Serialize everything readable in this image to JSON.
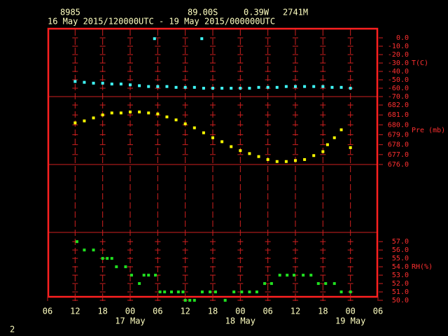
{
  "header": {
    "station": "8985",
    "lat": "89.00S",
    "lon": "0.39W",
    "elev": "2741M",
    "period": "16 May 2015/120000UTC - 19 May 2015/000000UTC",
    "page": "2"
  },
  "chart_data": [
    {
      "type": "scatter",
      "ylabel": "T(C)",
      "color": "#40ffff",
      "ylim": [
        -70,
        11.7
      ],
      "yticks": [
        {
          "value": 0,
          "label": "0.0"
        },
        {
          "value": -10,
          "label": "-10.0"
        },
        {
          "value": -20,
          "label": "-20.0"
        },
        {
          "value": -30,
          "label": "-30.0"
        },
        {
          "value": -40,
          "label": "-40.0"
        },
        {
          "value": -50,
          "label": "-50.0"
        },
        {
          "value": -60,
          "label": "-60.0"
        },
        {
          "value": -70,
          "label": "-70.0"
        }
      ],
      "xlim": [
        0,
        72
      ],
      "x": [
        6,
        8,
        10,
        12,
        14,
        16,
        18,
        20,
        22,
        24,
        26,
        28,
        30,
        32,
        34,
        36,
        38,
        40,
        42,
        44,
        46,
        48,
        50,
        52,
        54,
        56,
        58,
        60,
        62,
        64,
        66,
        23.3,
        33.6
      ],
      "values": [
        -52,
        -53,
        -54,
        -54,
        -55,
        -55,
        -56,
        -57,
        -58,
        -58,
        -58,
        -59,
        -59,
        -59,
        -60,
        -60,
        -60,
        -60,
        -60,
        -60,
        -59,
        -59,
        -59,
        -58,
        -58,
        -58,
        -58,
        -58,
        -59,
        -59,
        -60,
        -1,
        -1
      ]
    },
    {
      "type": "scatter",
      "ylabel": "Pre (mb)",
      "color": "#ffff00",
      "ylim": [
        676,
        682.85
      ],
      "yticks": [
        {
          "value": 682,
          "label": "682.0"
        },
        {
          "value": 681,
          "label": "681.0"
        },
        {
          "value": 680,
          "label": "680.0"
        },
        {
          "value": 679,
          "label": "679.0"
        },
        {
          "value": 678,
          "label": "678.0"
        },
        {
          "value": 677,
          "label": "677.0"
        },
        {
          "value": 676,
          "label": "676.0"
        }
      ],
      "xlim": [
        0,
        72
      ],
      "x": [
        6,
        8,
        10,
        12,
        14,
        16,
        18,
        20,
        22,
        24,
        26,
        28,
        30,
        32,
        34,
        36,
        38,
        40,
        42,
        44,
        46,
        48,
        50,
        52,
        54,
        56,
        58,
        60,
        61,
        62.5,
        64,
        66
      ],
      "values": [
        680.2,
        680.4,
        680.7,
        681.0,
        681.2,
        681.2,
        681.3,
        681.3,
        681.2,
        681.1,
        680.8,
        680.5,
        680.1,
        679.7,
        679.2,
        678.7,
        678.3,
        677.8,
        677.4,
        677.1,
        676.8,
        676.5,
        676.3,
        676.3,
        676.4,
        676.5,
        676.9,
        677.3,
        678.0,
        678.7,
        679.5,
        677.7
      ]
    },
    {
      "type": "scatter",
      "ylabel": "RH(%)",
      "color": "#20e020",
      "ylim": [
        50,
        58.1
      ],
      "yticks": [
        {
          "value": 57,
          "label": "57.0"
        },
        {
          "value": 56,
          "label": "56.0"
        },
        {
          "value": 55,
          "label": "55.0"
        },
        {
          "value": 54,
          "label": "54.0"
        },
        {
          "value": 53,
          "label": "53.0"
        },
        {
          "value": 52,
          "label": "52.0"
        },
        {
          "value": 51,
          "label": "51.0"
        },
        {
          "value": 50,
          "label": "50.0"
        }
      ],
      "xlim": [
        0,
        72
      ],
      "xticks": [
        {
          "value": 0,
          "label": "06"
        },
        {
          "value": 6,
          "label": "12"
        },
        {
          "value": 12,
          "label": "18"
        },
        {
          "value": 18,
          "label": "00"
        },
        {
          "value": 24,
          "label": "06"
        },
        {
          "value": 30,
          "label": "12"
        },
        {
          "value": 36,
          "label": "18"
        },
        {
          "value": 42,
          "label": "00"
        },
        {
          "value": 48,
          "label": "06"
        },
        {
          "value": 54,
          "label": "12"
        },
        {
          "value": 60,
          "label": "18"
        },
        {
          "value": 66,
          "label": "00"
        },
        {
          "value": 72,
          "label": "06"
        }
      ],
      "date_labels": [
        {
          "value": 18,
          "label": "17 May"
        },
        {
          "value": 42,
          "label": "18 May"
        },
        {
          "value": 66,
          "label": "19 May"
        }
      ],
      "x": [
        6.4,
        8,
        10,
        12,
        13,
        14,
        15,
        17,
        18.3,
        20,
        21,
        22,
        23.5,
        24.5,
        25.5,
        27,
        28.5,
        29.5,
        30,
        31,
        32,
        33.7,
        35.4,
        36.6,
        38.7,
        40.6,
        42.3,
        44,
        45.6,
        47.3,
        48.8,
        50.6,
        52.2,
        53.7,
        55.7,
        57.4,
        59,
        60.6,
        62.5,
        64,
        66
      ],
      "values": [
        57,
        56,
        56,
        55,
        55,
        55,
        54,
        54,
        53,
        52,
        53,
        53,
        53,
        51,
        51,
        51,
        51,
        51,
        50,
        50,
        50,
        51,
        51,
        51,
        50,
        51,
        51,
        51,
        51,
        52,
        52,
        53,
        53,
        53,
        53,
        53,
        52,
        52,
        52,
        51,
        51
      ]
    }
  ]
}
